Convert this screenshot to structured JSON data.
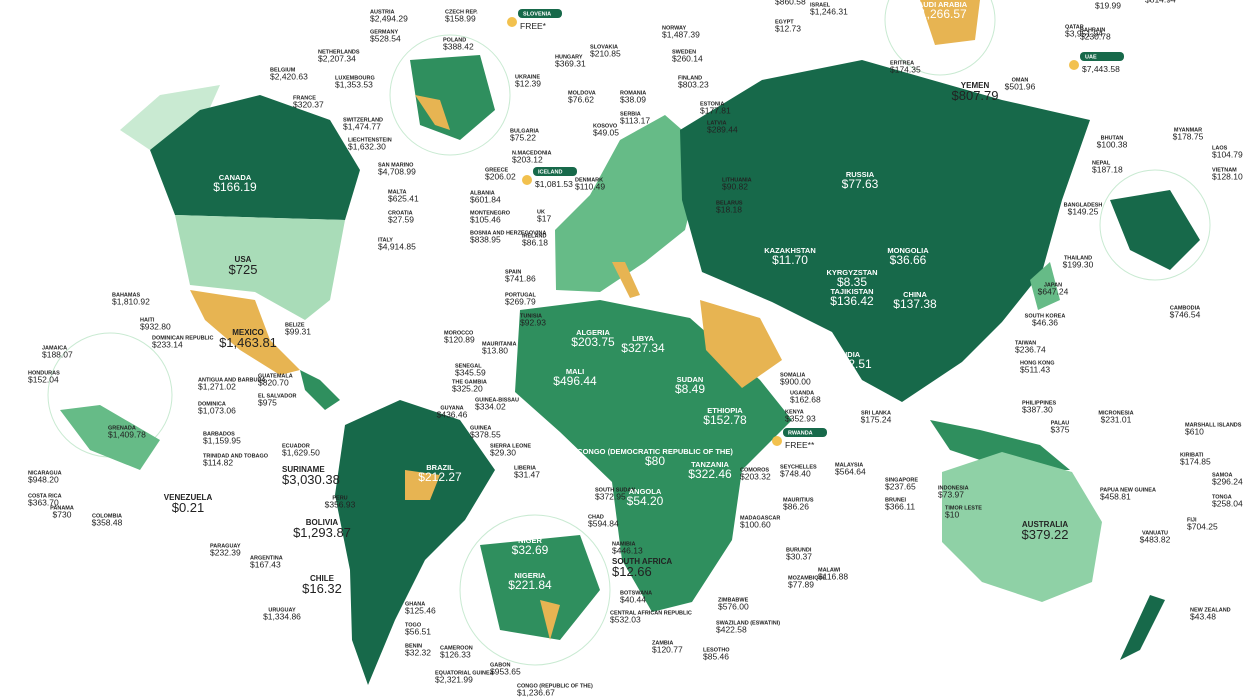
{
  "labels": [
    {
      "value": "$860.58"
    },
    {
      "name": "ISRAEL",
      "value": "$1,246.31"
    },
    {
      "name": "EGYPT",
      "value": "$12.73"
    },
    {
      "name": "SAUDI ARABIA",
      "value": "$1,266.57"
    },
    {
      "name": "QATAR",
      "value": "$3,951.94"
    },
    {
      "name": "BAHRAIN",
      "value": "$230.78"
    },
    {
      "value": "$19.99"
    },
    {
      "value": "$814.94"
    },
    {
      "name": "ERITREA",
      "value": "$174.35"
    },
    {
      "name": "YEMEN",
      "value": "$807.79"
    },
    {
      "name": "OMAN",
      "value": "$501.96"
    },
    {
      "name": "UAE",
      "value": "$7,443.58"
    },
    {
      "name": "AUSTRIA",
      "value": "$2,494.29"
    },
    {
      "name": "CZECH REP.",
      "value": "$158.99"
    },
    {
      "name": "SLOVENIA",
      "value": "FREE*"
    },
    {
      "name": "GERMANY",
      "value": "$528.54"
    },
    {
      "name": "POLAND",
      "value": "$388.42"
    },
    {
      "name": "SLOVAKIA",
      "value": "$210.85"
    },
    {
      "name": "NETHERLANDS",
      "value": "$2,207.34"
    },
    {
      "name": "HUNGARY",
      "value": "$369.31"
    },
    {
      "name": "BELGIUM",
      "value": "$2,420.63"
    },
    {
      "name": "UKRAINE",
      "value": "$12.39"
    },
    {
      "name": "LUXEMBOURG",
      "value": "$1,353.53"
    },
    {
      "name": "MOLDOVA",
      "value": "$76.62"
    },
    {
      "name": "ROMANIA",
      "value": "$38.09"
    },
    {
      "name": "FRANCE",
      "value": "$320.37"
    },
    {
      "name": "SERBIA",
      "value": "$113.17"
    },
    {
      "name": "KOSOVO",
      "value": "$49.05"
    },
    {
      "name": "SWITZERLAND",
      "value": "$1,474.77"
    },
    {
      "name": "BULGARIA",
      "value": "$75.22"
    },
    {
      "name": "LIECHTENSTEIN",
      "value": "$1,632.30"
    },
    {
      "name": "N.MACEDONIA",
      "value": "$203.12"
    },
    {
      "name": "SAN MARINO",
      "value": "$4,708.99"
    },
    {
      "name": "GREECE",
      "value": "$206.02"
    },
    {
      "name": "MALTA",
      "value": "$625.41"
    },
    {
      "name": "ALBANIA",
      "value": "$601.84"
    },
    {
      "name": "CROATIA",
      "value": "$27.59"
    },
    {
      "name": "MONTENEGRO",
      "value": "$105.46"
    },
    {
      "name": "BOSNIA AND HERZEGOVINA",
      "value": "$838.95"
    },
    {
      "name": "ITALY",
      "value": "$4,914.85"
    },
    {
      "name": "NORWAY",
      "value": "$1,487.39"
    },
    {
      "name": "SWEDEN",
      "value": "$260.14"
    },
    {
      "name": "FINLAND",
      "value": "$803.23"
    },
    {
      "name": "ESTONIA",
      "value": "$177.81"
    },
    {
      "name": "LATVIA",
      "value": "$289.44"
    },
    {
      "name": "ICELAND",
      "value": "$1,081.53"
    },
    {
      "name": "DENMARK",
      "value": "$110.49"
    },
    {
      "name": "LITHUANIA",
      "value": "$90.82"
    },
    {
      "name": "BELARUS",
      "value": "$18.18"
    },
    {
      "name": "UK",
      "value": "$17"
    },
    {
      "name": "IRELAND",
      "value": "$86.18"
    },
    {
      "name": "SPAIN",
      "value": "$741.86"
    },
    {
      "name": "PORTUGAL",
      "value": "$269.79"
    },
    {
      "name": "TUNISIA",
      "value": "$92.93"
    },
    {
      "name": "MOROCCO",
      "value": "$120.89"
    },
    {
      "name": "ALGERIA",
      "value": "$203.75"
    },
    {
      "name": "LIBYA",
      "value": "$327.34"
    },
    {
      "name": "MAURITANIA",
      "value": "$13.80"
    },
    {
      "name": "MALI",
      "value": "$496.44"
    },
    {
      "name": "SENEGAL",
      "value": "$345.59"
    },
    {
      "name": "THE GAMBIA",
      "value": "$325.20"
    },
    {
      "name": "GUINEA-BISSAU",
      "value": "$334.02"
    },
    {
      "name": "GUINEA",
      "value": "$378.55"
    },
    {
      "name": "SIERRA LEONE",
      "value": "$29.30"
    },
    {
      "name": "LIBERIA",
      "value": "$31.47"
    },
    {
      "name": "SUDAN",
      "value": "$8.49"
    },
    {
      "name": "ETHIOPIA",
      "value": "$152.78"
    },
    {
      "name": "SOMALIA",
      "value": "$900.00"
    },
    {
      "name": "UGANDA",
      "value": "$162.68"
    },
    {
      "name": "KENYA",
      "value": "$352.93"
    },
    {
      "name": "RWANDA",
      "value": "FREE**"
    },
    {
      "name": "CONGO (DEMOCRATIC REPUBLIC OF THE)",
      "value": "$80"
    },
    {
      "name": "TANZANIA",
      "value": "$322.46"
    },
    {
      "name": "SEYCHELLES",
      "value": "$748.40"
    },
    {
      "name": "COMOROS",
      "value": "$203.32"
    },
    {
      "name": "SOUTH SUDAN",
      "value": "$372.95"
    },
    {
      "name": "ANGOLA",
      "value": "$54.20"
    },
    {
      "name": "CHAD",
      "value": "$594.84"
    },
    {
      "name": "NAMIBIA",
      "value": "$446.13"
    },
    {
      "name": "MAURITIUS",
      "value": "$86.26"
    },
    {
      "name": "MADAGASCAR",
      "value": "$100.60"
    },
    {
      "name": "BURUNDI",
      "value": "$30.37"
    },
    {
      "name": "MALAWI",
      "value": "$116.88"
    },
    {
      "name": "MOZAMBIQUE",
      "value": "$77.89"
    },
    {
      "name": "SOUTH AFRICA",
      "value": "$12.66"
    },
    {
      "name": "BOTSWANA",
      "value": "$40.44"
    },
    {
      "name": "ZIMBABWE",
      "value": "$576.00"
    },
    {
      "name": "SWAZILAND (ESWATINI)",
      "value": "$422.58"
    },
    {
      "name": "CENTRAL AFRICAN REPUBLIC",
      "value": "$532.03"
    },
    {
      "name": "LESOTHO",
      "value": "$85.46"
    },
    {
      "name": "ZAMBIA",
      "value": "$120.77"
    },
    {
      "name": "NIGER",
      "value": "$32.69"
    },
    {
      "name": "NIGERIA",
      "value": "$221.84"
    },
    {
      "name": "GHANA",
      "value": "$125.46"
    },
    {
      "name": "TOGO",
      "value": "$56.51"
    },
    {
      "name": "BENIN",
      "value": "$32.32"
    },
    {
      "name": "CAMEROON",
      "value": "$126.33"
    },
    {
      "name": "EQUATORIAL GUINEA",
      "value": "$2,321.99"
    },
    {
      "name": "GABON",
      "value": "$953.65"
    },
    {
      "name": "CONGO (REPUBLIC OF THE)",
      "value": "$1,236.67"
    },
    {
      "name": "RUSSIA",
      "value": "$77.63"
    },
    {
      "name": "KAZAKHSTAN",
      "value": "$11.70"
    },
    {
      "name": "MONGOLIA",
      "value": "$36.66"
    },
    {
      "name": "KYRGYZSTAN",
      "value": "$8.35"
    },
    {
      "name": "TAJIKISTAN",
      "value": "$136.42"
    },
    {
      "name": "CHINA",
      "value": "$137.38"
    },
    {
      "name": "INDIA",
      "value": "$142.51"
    },
    {
      "name": "SRI LANKA",
      "value": "$175.24"
    },
    {
      "name": "JAPAN",
      "value": "$647.24"
    },
    {
      "name": "SOUTH KOREA",
      "value": "$46.36"
    },
    {
      "name": "TAIWAN",
      "value": "$236.74"
    },
    {
      "name": "HONG KONG",
      "value": "$511.43"
    },
    {
      "name": "PHILIPPINES",
      "value": "$387.30"
    },
    {
      "name": "MALAYSIA",
      "value": "$564.64"
    },
    {
      "name": "SINGAPORE",
      "value": "$237.65"
    },
    {
      "name": "BRUNEI",
      "value": "$366.11"
    },
    {
      "name": "INDONESIA",
      "value": "$73.97"
    },
    {
      "name": "TIMOR LESTE",
      "value": "$10"
    },
    {
      "name": "PALAU",
      "value": "$375"
    },
    {
      "name": "MICRONESIA",
      "value": "$231.01"
    },
    {
      "name": "MARSHALL ISLANDS",
      "value": "$610"
    },
    {
      "name": "KIRIBATI",
      "value": "$174.85"
    },
    {
      "name": "SAMOA",
      "value": "$296.24"
    },
    {
      "name": "TONGA",
      "value": "$258.04"
    },
    {
      "name": "FIJI",
      "value": "$704.25"
    },
    {
      "name": "VANUATU",
      "value": "$483.82"
    },
    {
      "name": "PAPUA NEW GUINEA",
      "value": "$458.81"
    },
    {
      "name": "AUSTRALIA",
      "value": "$379.22"
    },
    {
      "name": "NEW ZEALAND",
      "value": "$43.48"
    },
    {
      "name": "BHUTAN",
      "value": "$100.38"
    },
    {
      "name": "MYANMAR",
      "value": "$178.75"
    },
    {
      "name": "NEPAL",
      "value": "$187.18"
    },
    {
      "name": "LAOS",
      "value": "$104.79"
    },
    {
      "name": "VIETNAM",
      "value": "$128.10"
    },
    {
      "name": "BANGLADESH",
      "value": "$149.25"
    },
    {
      "name": "THAILAND",
      "value": "$199.30"
    },
    {
      "name": "CAMBODIA",
      "value": "$746.54"
    },
    {
      "name": "CANADA",
      "value": "$166.19"
    },
    {
      "name": "USA",
      "value": "$725"
    },
    {
      "name": "MEXICO",
      "value": "$1,463.81"
    },
    {
      "name": "BELIZE",
      "value": "$99.31"
    },
    {
      "name": "GUATEMALA",
      "value": "$820.70"
    },
    {
      "name": "EL SALVADOR",
      "value": "$975"
    },
    {
      "name": "BAHAMAS",
      "value": "$1,810.92"
    },
    {
      "name": "HAITI",
      "value": "$932.80"
    },
    {
      "name": "DOMINICAN REPUBLIC",
      "value": "$233.14"
    },
    {
      "name": "JAMAICA",
      "value": "$188.07"
    },
    {
      "name": "HONDURAS",
      "value": "$152.04"
    },
    {
      "name": "ANTIGUA AND BARBUDA",
      "value": "$1,271.02"
    },
    {
      "name": "DOMINICA",
      "value": "$1,073.06"
    },
    {
      "name": "GRENADA",
      "value": "$1,409.78"
    },
    {
      "name": "BARBADOS",
      "value": "$1,159.95"
    },
    {
      "name": "TRINIDAD AND TOBAGO",
      "value": "$114.82"
    },
    {
      "name": "NICARAGUA",
      "value": "$948.20"
    },
    {
      "name": "COSTA RICA",
      "value": "$363.70"
    },
    {
      "name": "PANAMA",
      "value": "$730"
    },
    {
      "name": "COLOMBIA",
      "value": "$358.48"
    },
    {
      "name": "VENEZUELA",
      "value": "$0.21"
    },
    {
      "name": "GUYANA",
      "value": "$436.46"
    },
    {
      "name": "ECUADOR",
      "value": "$1,629.50"
    },
    {
      "name": "SURINAME",
      "value": "$3,030.38"
    },
    {
      "name": "BRAZIL",
      "value": "$212.27"
    },
    {
      "name": "PERU",
      "value": "$356.93"
    },
    {
      "name": "BOLIVIA",
      "value": "$1,293.87"
    },
    {
      "name": "PARAGUAY",
      "value": "$232.39"
    },
    {
      "name": "ARGENTINA",
      "value": "$167.43"
    },
    {
      "name": "CHILE",
      "value": "$16.32"
    },
    {
      "name": "URUGUAY",
      "value": "$1,334.86"
    }
  ]
}
